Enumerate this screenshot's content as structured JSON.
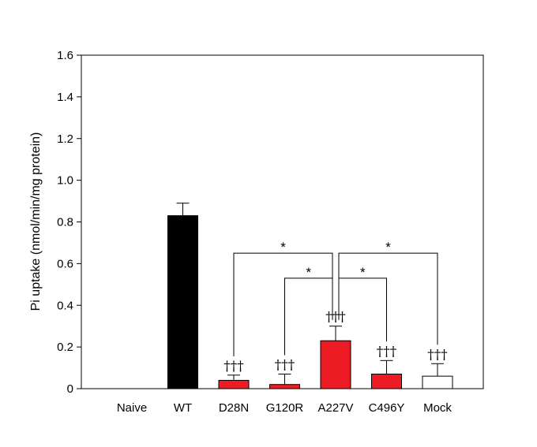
{
  "chart_data": {
    "type": "bar",
    "title": "",
    "xlabel": "",
    "ylabel": "Pi uptake (nmol/min/mg protein)",
    "ylim": [
      0,
      1.6
    ],
    "yticks": [
      "0",
      "0.2",
      "0.4",
      "0.6",
      "0.8",
      "1.0",
      "1.2",
      "1.4",
      "1.6"
    ],
    "categories": [
      "Naive",
      "WT",
      "D28N",
      "G120R",
      "A227V",
      "C496Y",
      "Mock"
    ],
    "values": [
      0,
      0.83,
      0.04,
      0.02,
      0.23,
      0.07,
      0.06
    ],
    "errors": [
      0,
      0.06,
      0.025,
      0.05,
      0.07,
      0.065,
      0.06
    ],
    "colors": [
      "#ffffff",
      "#000000",
      "#ed1c24",
      "#ed1c24",
      "#ed1c24",
      "#ed1c24",
      "#ffffff"
    ],
    "daggers": [
      "",
      "",
      "†††",
      "†††",
      "†††",
      "†††",
      "†††"
    ],
    "significance": [
      {
        "from": "D28N",
        "to": "A227V",
        "y": 0.65,
        "label": "*"
      },
      {
        "from": "A227V",
        "to": "Mock",
        "y": 0.65,
        "label": "*"
      },
      {
        "from": "G120R",
        "to": "A227V",
        "y": 0.53,
        "label": "*"
      },
      {
        "from": "A227V",
        "to": "C496Y",
        "y": 0.53,
        "label": "*"
      }
    ],
    "grid": false
  }
}
